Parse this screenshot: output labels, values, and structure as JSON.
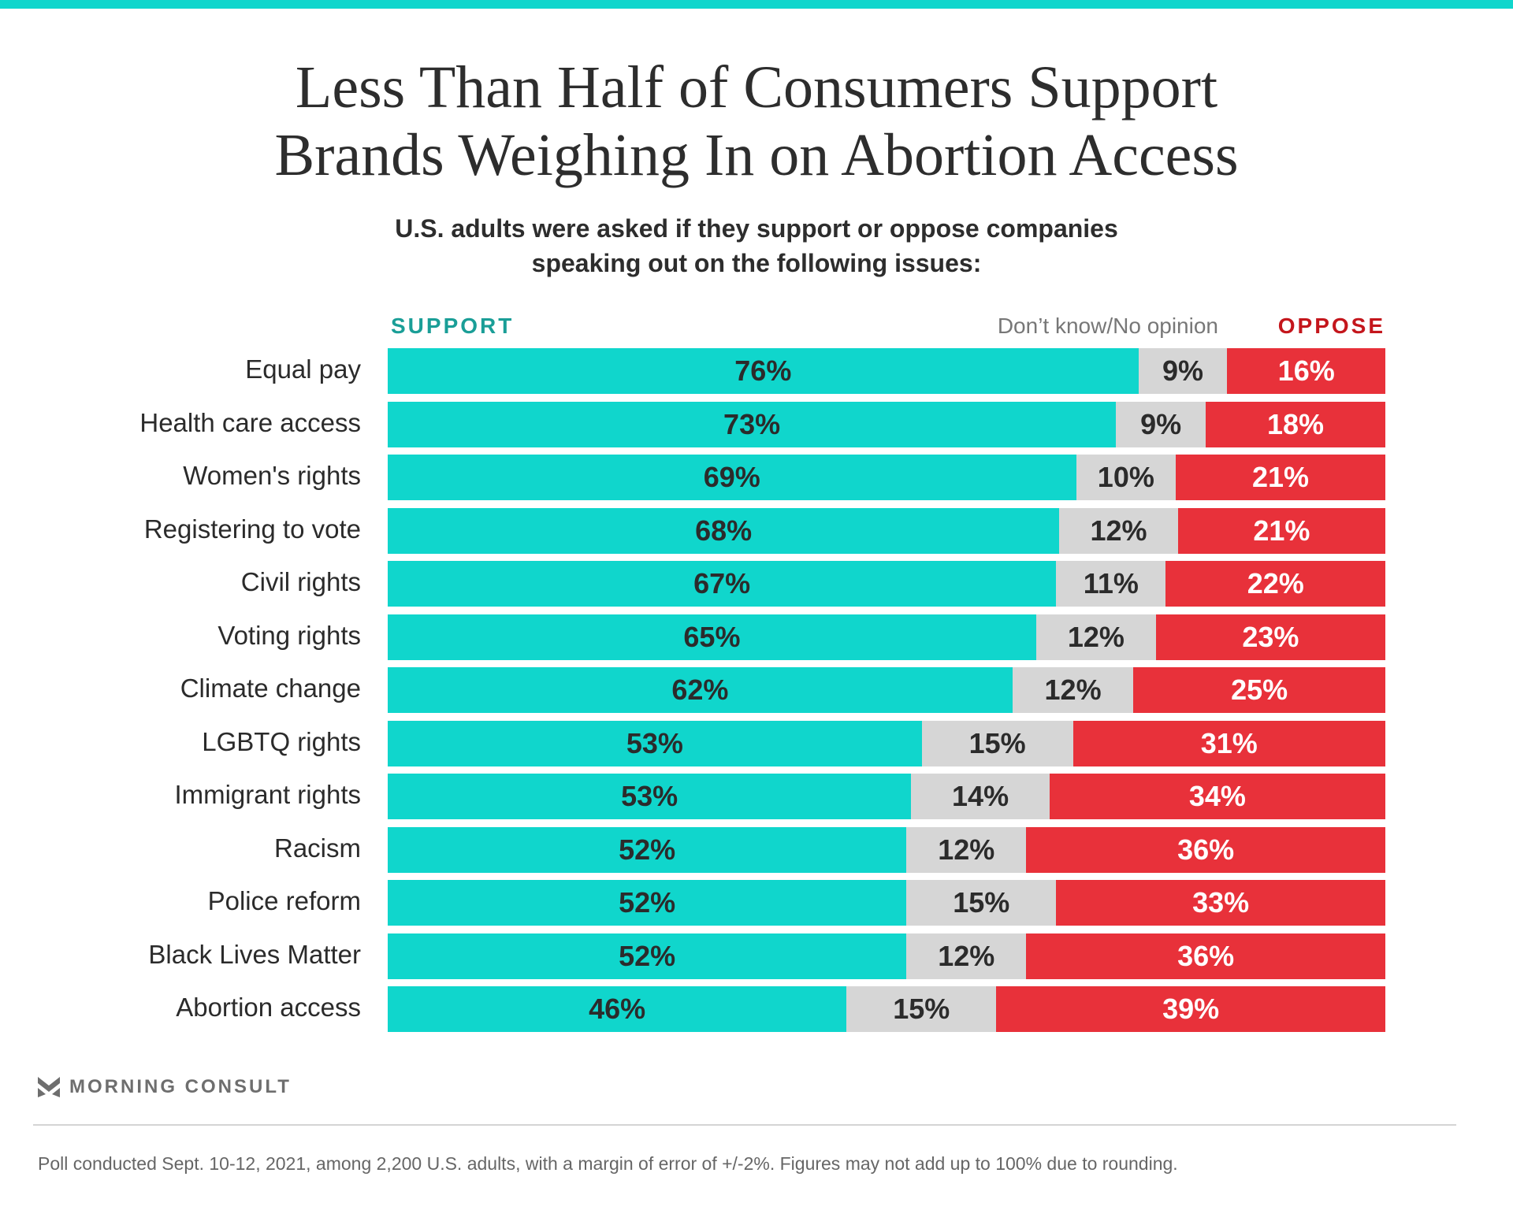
{
  "brand": {
    "name": "MORNING CONSULT",
    "accent": "#10d6cc"
  },
  "colors": {
    "support": "#10d6cc",
    "dont_know": "#d6d6d6",
    "oppose": "#e8313a",
    "support_label": "#1a9e97",
    "oppose_label": "#c4161c"
  },
  "footnote": "Poll conducted Sept. 10-12, 2021, among 2,200 U.S. adults, with a margin of error of +/-2%. Figures may not add up to 100% due to rounding.",
  "chart_data": {
    "type": "bar",
    "orientation": "horizontal-stacked-100",
    "title": "Less Than Half of Consumers Support Brands Weighing In on Abortion Access",
    "title_lines": [
      "Less Than Half of Consumers Support",
      "Brands Weighing In on Abortion Access"
    ],
    "subtitle_lines": [
      "U.S. adults were asked if they support or oppose companies",
      "speaking out on the following issues:"
    ],
    "legend": {
      "support": "SUPPORT",
      "dont_know": "Don’t know/No opinion",
      "oppose": "OPPOSE"
    },
    "legend_placement": "top",
    "categories": [
      "Equal pay",
      "Health care access",
      "Women's rights",
      "Registering to vote",
      "Civil rights",
      "Voting rights",
      "Climate change",
      "LGBTQ rights",
      "Immigrant rights",
      "Racism",
      "Police reform",
      "Black Lives Matter",
      "Abortion access"
    ],
    "series": [
      {
        "name": "Support",
        "values": [
          76,
          73,
          69,
          68,
          67,
          65,
          62,
          53,
          53,
          52,
          52,
          52,
          46
        ]
      },
      {
        "name": "Don't know/No opinion",
        "values": [
          9,
          9,
          10,
          12,
          11,
          12,
          12,
          15,
          14,
          12,
          15,
          12,
          15
        ]
      },
      {
        "name": "Oppose",
        "values": [
          16,
          18,
          21,
          21,
          22,
          23,
          25,
          31,
          34,
          36,
          33,
          36,
          39
        ]
      }
    ],
    "unit": "%",
    "xlim": [
      0,
      100
    ],
    "grid": false
  }
}
